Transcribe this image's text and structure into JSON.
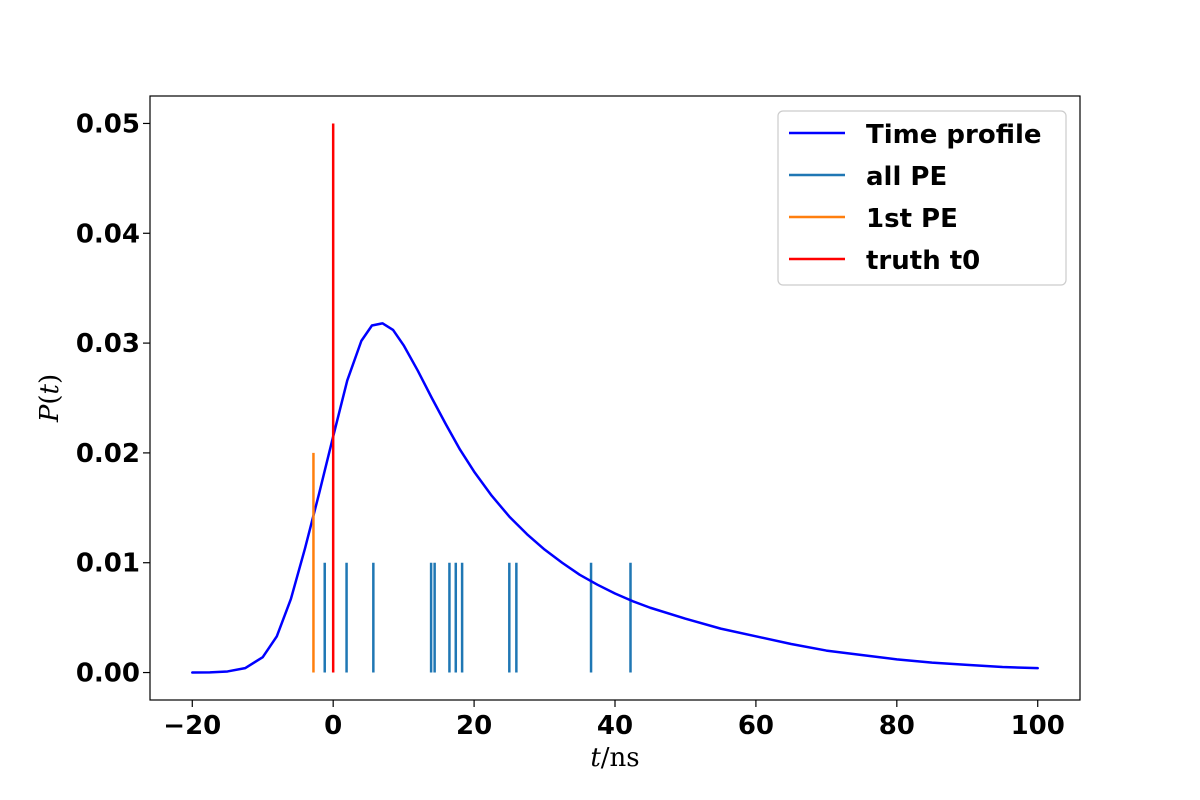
{
  "chart_data": {
    "type": "line",
    "xlabel": "t/ns",
    "xlabel_var": "t",
    "xlabel_unit": "/ns",
    "ylabel": "P(t)",
    "ylabel_var": "P",
    "ylabel_paren_open": "(",
    "ylabel_arg": "t",
    "ylabel_paren_close": ")",
    "xlim": [
      -26,
      106
    ],
    "ylim": [
      -0.0025,
      0.0525
    ],
    "xticks": [
      -20,
      0,
      20,
      40,
      60,
      80,
      100
    ],
    "xtick_labels": [
      "−20",
      "0",
      "20",
      "40",
      "60",
      "80",
      "100"
    ],
    "yticks": [
      0.0,
      0.01,
      0.02,
      0.03,
      0.04,
      0.05
    ],
    "ytick_labels": [
      "0.00",
      "0.01",
      "0.02",
      "0.03",
      "0.04",
      "0.05"
    ],
    "grid": false,
    "legend_position": "top-right",
    "legend": [
      "Time profile",
      "all PE",
      "1st PE",
      "truth t0"
    ],
    "colors": {
      "time_profile": "#0000ff",
      "all_pe": "#1f77b4",
      "first_pe": "#ff7f0e",
      "truth_t0": "#ff0000"
    },
    "series": [
      {
        "name": "Time profile",
        "kind": "line",
        "x": [
          -20,
          -17.5,
          -15,
          -12.5,
          -10,
          -8,
          -6,
          -4,
          -2,
          0,
          2,
          4,
          5.5,
          7,
          8.5,
          10,
          12,
          14,
          16,
          18,
          20,
          22.5,
          25,
          27.5,
          30,
          32.5,
          35,
          37.5,
          40,
          42.5,
          45,
          50,
          55,
          60,
          65,
          70,
          75,
          80,
          85,
          90,
          95,
          100
        ],
        "y": [
          0.0,
          2e-05,
          0.0001,
          0.0004,
          0.0014,
          0.0033,
          0.0067,
          0.0113,
          0.0163,
          0.0215,
          0.0266,
          0.0302,
          0.0316,
          0.0318,
          0.0312,
          0.0298,
          0.0275,
          0.025,
          0.0226,
          0.0203,
          0.0183,
          0.0161,
          0.0142,
          0.0126,
          0.0112,
          0.01,
          0.0089,
          0.008,
          0.0072,
          0.0065,
          0.0059,
          0.0049,
          0.004,
          0.0033,
          0.0026,
          0.002,
          0.0016,
          0.0012,
          0.0009,
          0.0007,
          0.0005,
          0.0004
        ]
      },
      {
        "name": "all PE",
        "kind": "vlines",
        "x": [
          -1.2,
          1.9,
          5.7,
          13.9,
          14.4,
          16.5,
          17.4,
          18.3,
          25.0,
          26.0,
          36.6,
          42.2
        ],
        "ymin": 0.0,
        "ymax": 0.01
      },
      {
        "name": "1st PE",
        "kind": "vlines",
        "x": [
          -2.8
        ],
        "ymin": 0.0,
        "ymax": 0.02
      },
      {
        "name": "truth t0",
        "kind": "vlines",
        "x": [
          0.0
        ],
        "ymin": 0.0,
        "ymax": 0.05
      }
    ]
  }
}
